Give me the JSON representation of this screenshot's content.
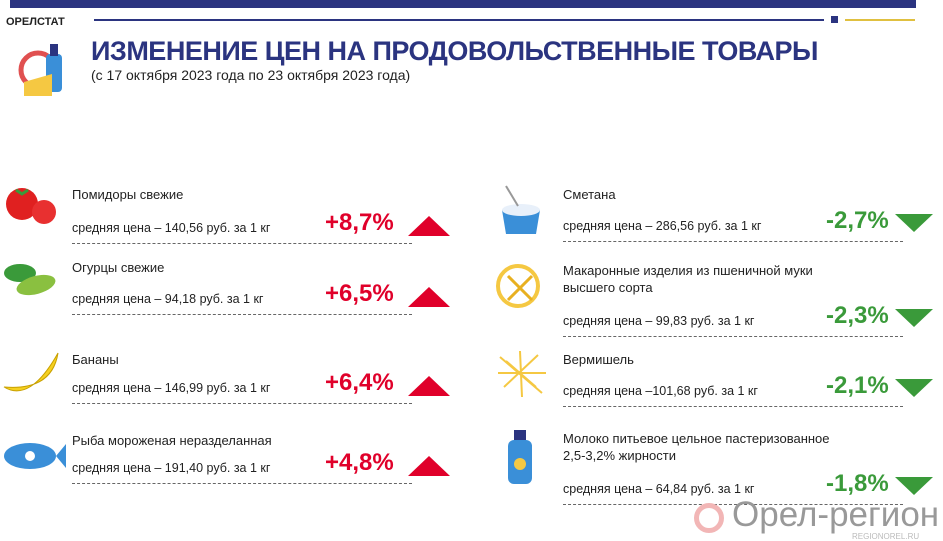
{
  "header": {
    "brand": "ОРЕЛСТАТ",
    "title": "ИЗМЕНЕНИЕ ЦЕН НА ПРОДОВОЛЬСТВЕННЫЕ ТОВАРЫ",
    "subtitle": "(с 17 октября 2023 года по 23 октября 2023 года)"
  },
  "left": [
    {
      "name": "Помидоры свежие",
      "price": "средняя цена – 140,56 руб. за 1 кг",
      "change": "+8,7%",
      "icon": "tomato-icon"
    },
    {
      "name": "Огурцы свежие",
      "price": "средняя цена – 94,18 руб. за 1 кг",
      "change": "+6,5%",
      "icon": "cucumber-icon"
    },
    {
      "name": "Бананы",
      "price": "средняя цена – 146,99 руб. за 1 кг",
      "change": "+6,4%",
      "icon": "banana-icon"
    },
    {
      "name": "Рыба мороженая неразделанная",
      "price": "средняя цена – 191,40 руб. за 1 кг",
      "change": "+4,8%",
      "icon": "fish-icon"
    }
  ],
  "right": [
    {
      "name": "Сметана",
      "price": "средняя цена – 286,56 руб. за 1 кг",
      "change": "-2,7%",
      "icon": "sour-cream-icon"
    },
    {
      "name": "Макаронные изделия из пшеничной муки\nвысшего сорта",
      "price": "средняя цена –  99,83 руб. за  1 кг",
      "change": "-2,3%",
      "icon": "pasta-icon"
    },
    {
      "name": "Вермишель",
      "price": "средняя цена –101,68 руб. за 1 кг",
      "change": "-2,1%",
      "icon": "vermicelli-icon"
    },
    {
      "name": "Молоко питьевое цельное пастеризованное\n2,5-3,2% жирности",
      "price": "средняя цена – 64,84 руб. за 1 кг",
      "change": "-1,8%",
      "icon": "milk-icon"
    }
  ],
  "watermark": {
    "text": "Орел-регион",
    "site": "REGIONOREL.RU"
  },
  "colors": {
    "navy": "#2b3480",
    "up": "#e0002a",
    "down": "#3a9a3a"
  }
}
